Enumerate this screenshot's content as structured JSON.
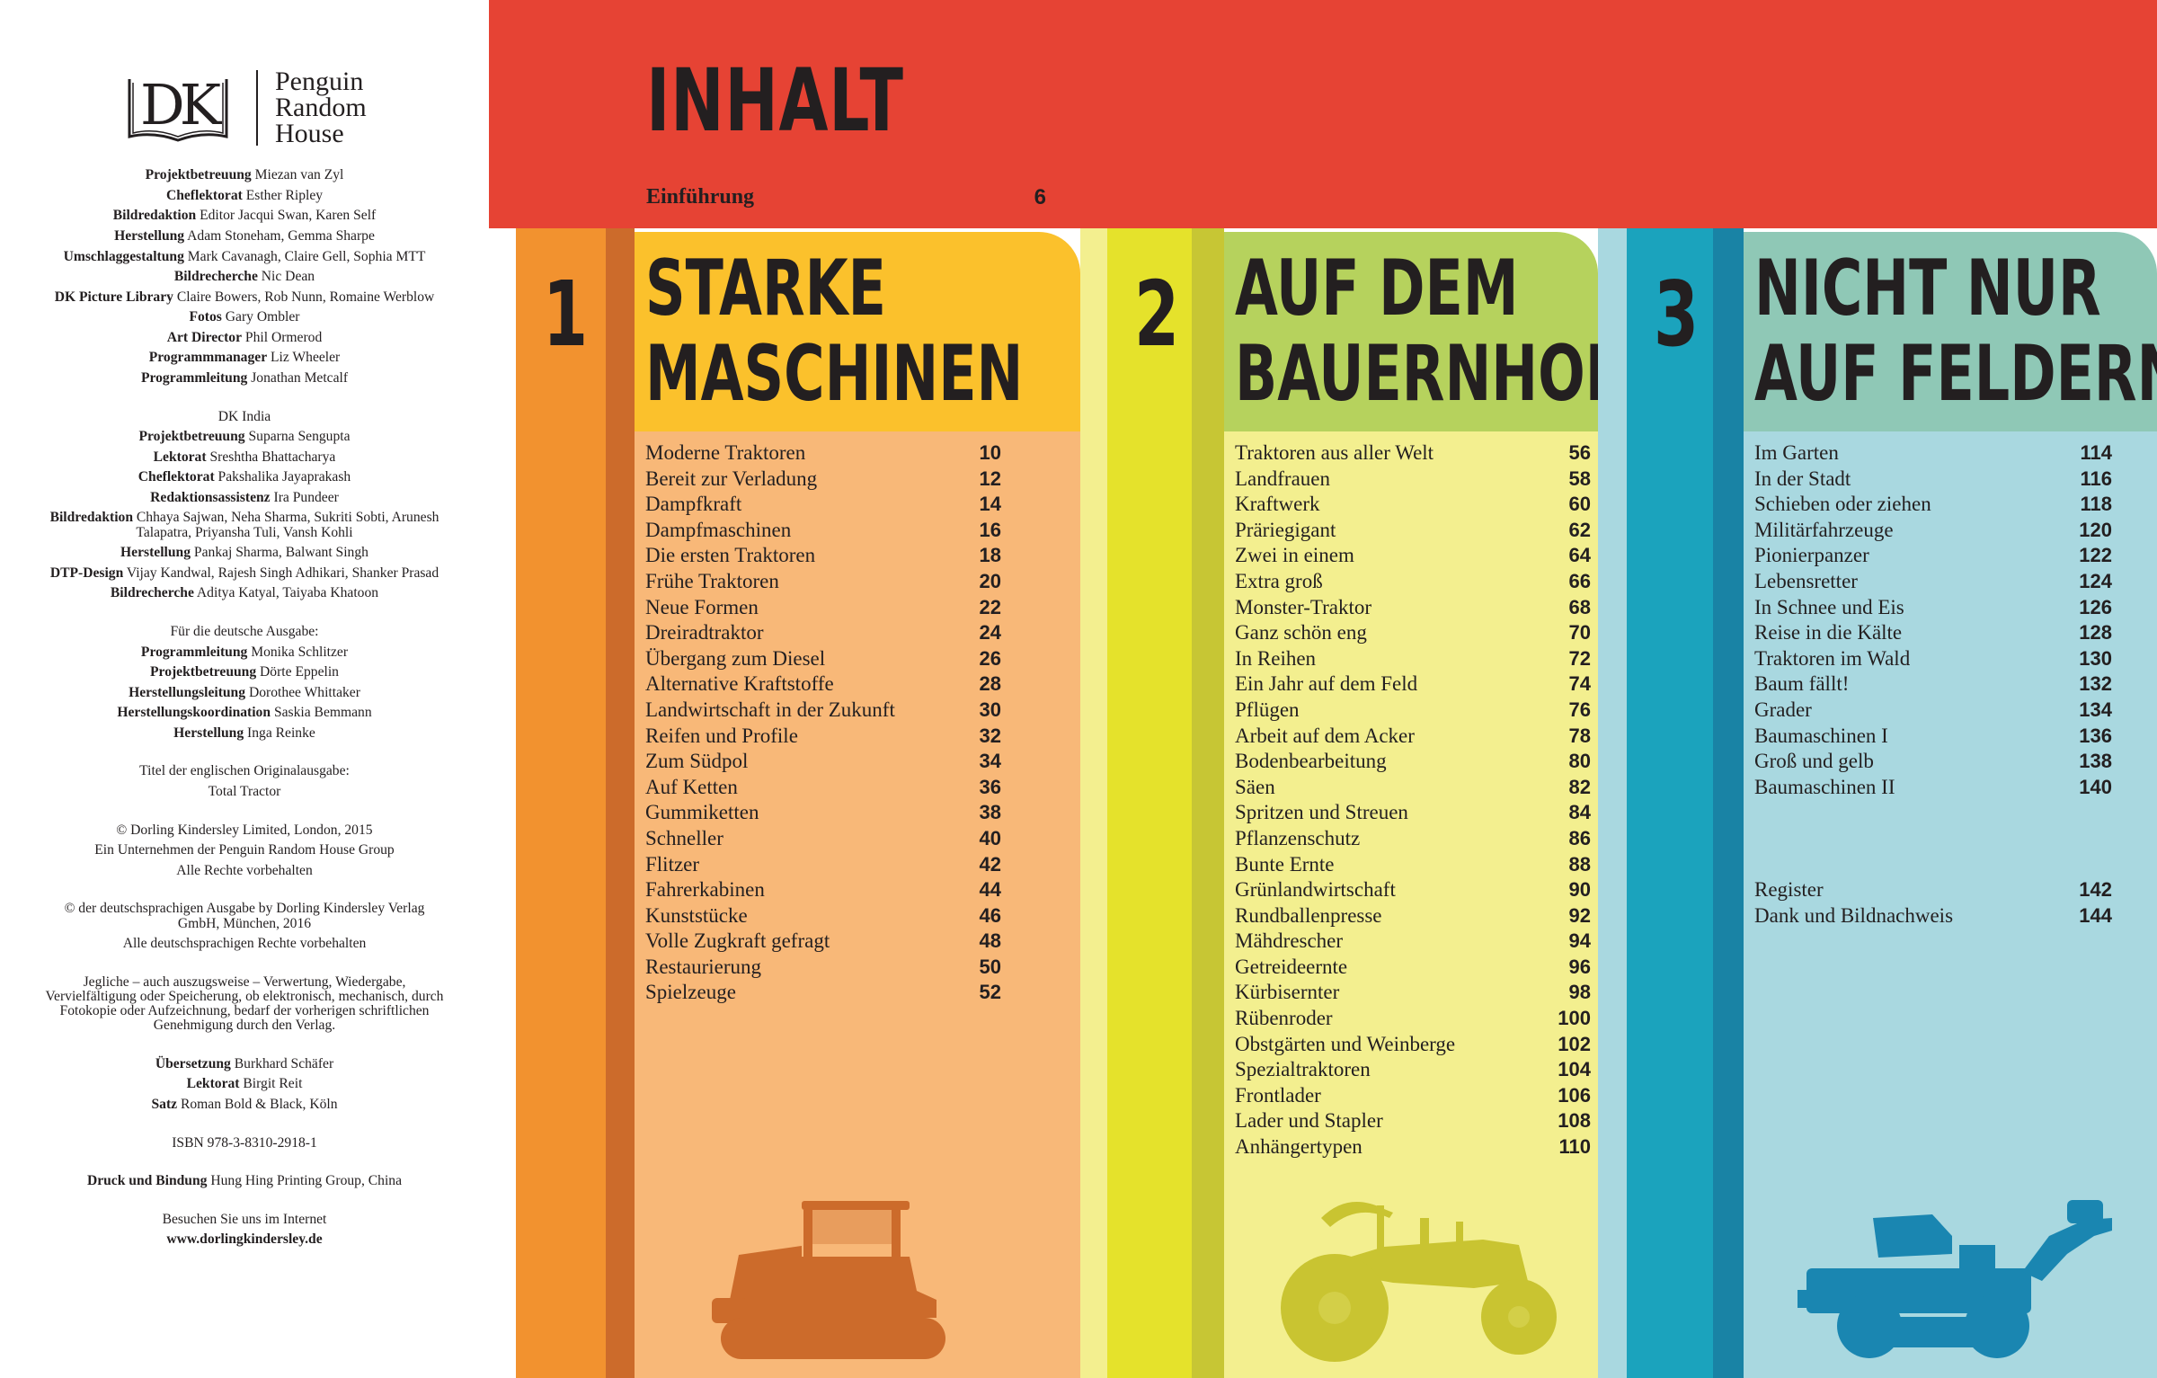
{
  "logo": {
    "dk": "DK",
    "publisher_lines": [
      "Penguin",
      "Random",
      "House"
    ]
  },
  "imprint": [
    [
      {
        "role": "Projektbetreuung",
        "name": "Miezan van Zyl"
      },
      {
        "role": "Cheflektorat",
        "name": "Esther Ripley"
      },
      {
        "role": "Bildredaktion",
        "name": "Editor Jacqui Swan, Karen Self"
      },
      {
        "role": "Herstellung",
        "name": "Adam Stoneham, Gemma Sharpe"
      },
      {
        "role": "Umschlaggestaltung",
        "name": "Mark Cavanagh, Claire Gell, Sophia MTT"
      },
      {
        "role": "Bildrecherche",
        "name": "Nic Dean"
      },
      {
        "role": "DK Picture Library",
        "name": "Claire Bowers, Rob Nunn, Romaine Werblow"
      },
      {
        "role": "Fotos",
        "name": "Gary Ombler"
      },
      {
        "role": "Art Director",
        "name": "Phil Ormerod"
      },
      {
        "role": "Programmmanager",
        "name": "Liz Wheeler"
      },
      {
        "role": "Programmleitung",
        "name": "Jonathan Metcalf"
      }
    ],
    [
      {
        "role": "",
        "name": "DK India"
      },
      {
        "role": "Projektbetreuung",
        "name": "Suparna Sengupta"
      },
      {
        "role": "Lektorat",
        "name": "Sreshtha Bhattacharya"
      },
      {
        "role": "Cheflektorat",
        "name": "Pakshalika Jayaprakash"
      },
      {
        "role": "Redaktionsassistenz",
        "name": "Ira Pundeer"
      },
      {
        "role": "Bildredaktion",
        "name": "Chhaya Sajwan, Neha Sharma, Sukriti Sobti, Arunesh Talapatra, Priyansha Tuli, Vansh Kohli"
      },
      {
        "role": "Herstellung",
        "name": "Pankaj Sharma, Balwant Singh"
      },
      {
        "role": "DTP-Design",
        "name": "Vijay Kandwal, Rajesh Singh Adhikari, Shanker Prasad"
      },
      {
        "role": "Bildrecherche",
        "name": "Aditya Katyal, Taiyaba Khatoon"
      }
    ],
    [
      {
        "role": "",
        "name": "Für die deutsche Ausgabe:"
      },
      {
        "role": "Programmleitung",
        "name": "Monika Schlitzer"
      },
      {
        "role": "Projektbetreuung",
        "name": "Dörte Eppelin"
      },
      {
        "role": "Herstellungsleitung",
        "name": "Dorothee Whittaker"
      },
      {
        "role": "Herstellungskoordination",
        "name": "Saskia Bemmann"
      },
      {
        "role": "Herstellung",
        "name": "Inga Reinke"
      }
    ],
    [
      {
        "role": "",
        "name": "Titel der englischen Originalausgabe:"
      },
      {
        "role": "",
        "name": "Total Tractor"
      }
    ],
    [
      {
        "role": "",
        "name": "© Dorling Kindersley Limited, London, 2015"
      },
      {
        "role": "",
        "name": "Ein Unternehmen der Penguin Random House Group"
      },
      {
        "role": "",
        "name": "Alle Rechte vorbehalten"
      }
    ],
    [
      {
        "role": "",
        "name": "© der deutschsprachigen Ausgabe by Dorling Kindersley Verlag GmbH, München, 2016"
      },
      {
        "role": "",
        "name": "Alle deutschsprachigen Rechte vorbehalten"
      }
    ],
    [
      {
        "role": "",
        "name": "Jegliche – auch auszugsweise – Verwertung, Wiedergabe, Vervielfältigung oder Speicherung, ob elektronisch, mechanisch, durch Fotokopie oder Aufzeichnung, bedarf der vorherigen schriftlichen Genehmigung durch den Verlag."
      }
    ],
    [
      {
        "role": "Übersetzung",
        "name": "Burkhard Schäfer"
      },
      {
        "role": "Lektorat",
        "name": "Birgit Reit"
      },
      {
        "role": "Satz",
        "name": "Roman Bold & Black, Köln"
      }
    ],
    [
      {
        "role": "",
        "name": "ISBN 978-3-8310-2918-1"
      }
    ],
    [
      {
        "role": "Druck und Bindung",
        "name": "Hung Hing Printing Group, China"
      }
    ],
    [
      {
        "role": "",
        "name": "Besuchen Sie uns im Internet"
      },
      {
        "role": "www.dorlingkindersley.de",
        "name": ""
      }
    ]
  ],
  "toc": {
    "title": "INHALT",
    "intro": {
      "label": "Einführung",
      "page": "6"
    },
    "sections": [
      {
        "number": "1",
        "title_line1": "STARKE",
        "title_line2": "MASCHINEN",
        "colors": {
          "band": "#f2922f",
          "stripe": "#cc6b2b",
          "head": "#fbc12c",
          "body": "#f8b878",
          "tractor": "#cc6b2b"
        },
        "entries": [
          {
            "t": "Moderne Traktoren",
            "p": "10"
          },
          {
            "t": "Bereit zur Verladung",
            "p": "12"
          },
          {
            "t": "Dampfkraft",
            "p": "14"
          },
          {
            "t": "Dampfmaschinen",
            "p": "16"
          },
          {
            "t": "Die ersten Traktoren",
            "p": "18"
          },
          {
            "t": "Frühe Traktoren",
            "p": "20"
          },
          {
            "t": "Neue Formen",
            "p": "22"
          },
          {
            "t": "Dreiradtraktor",
            "p": "24"
          },
          {
            "t": "Übergang zum Diesel",
            "p": "26"
          },
          {
            "t": "Alternative Kraftstoffe",
            "p": "28"
          },
          {
            "t": "Landwirtschaft in der Zukunft",
            "p": "30"
          },
          {
            "t": "Reifen und Profile",
            "p": "32"
          },
          {
            "t": "Zum Südpol",
            "p": "34"
          },
          {
            "t": "Auf Ketten",
            "p": "36"
          },
          {
            "t": "Gummiketten",
            "p": "38"
          },
          {
            "t": "Schneller",
            "p": "40"
          },
          {
            "t": "Flitzer",
            "p": "42"
          },
          {
            "t": "Fahrerkabinen",
            "p": "44"
          },
          {
            "t": "Kunststücke",
            "p": "46"
          },
          {
            "t": "Volle Zugkraft gefragt",
            "p": "48"
          },
          {
            "t": "Restaurierung",
            "p": "50"
          },
          {
            "t": "Spielzeuge",
            "p": "52"
          }
        ]
      },
      {
        "number": "2",
        "title_line1": "AUF DEM",
        "title_line2": "BAUERNHOF",
        "colors": {
          "band": "#e5e22b",
          "stripe": "#c7c634",
          "head": "#b6d25d",
          "body": "#f3ef8f",
          "tractor": "#c9c431"
        },
        "entries": [
          {
            "t": "Traktoren aus aller Welt",
            "p": "56"
          },
          {
            "t": "Landfrauen",
            "p": "58"
          },
          {
            "t": "Kraftwerk",
            "p": "60"
          },
          {
            "t": "Präriegigant",
            "p": "62"
          },
          {
            "t": "Zwei in einem",
            "p": "64"
          },
          {
            "t": "Extra groß",
            "p": "66"
          },
          {
            "t": "Monster-Traktor",
            "p": "68"
          },
          {
            "t": "Ganz schön eng",
            "p": "70"
          },
          {
            "t": "In Reihen",
            "p": "72"
          },
          {
            "t": "Ein Jahr auf dem Feld",
            "p": "74"
          },
          {
            "t": "Pflügen",
            "p": "76"
          },
          {
            "t": "Arbeit auf dem Acker",
            "p": "78"
          },
          {
            "t": "Bodenbearbeitung",
            "p": "80"
          },
          {
            "t": "Säen",
            "p": "82"
          },
          {
            "t": "Spritzen und Streuen",
            "p": "84"
          },
          {
            "t": "Pflanzenschutz",
            "p": "86"
          },
          {
            "t": "Bunte Ernte",
            "p": "88"
          },
          {
            "t": "Grünlandwirtschaft",
            "p": "90"
          },
          {
            "t": "Rundballenpresse",
            "p": "92"
          },
          {
            "t": "Mähdrescher",
            "p": "94"
          },
          {
            "t": "Getreideernte",
            "p": "96"
          },
          {
            "t": "Kürbisernter",
            "p": "98"
          },
          {
            "t": "Rübenroder",
            "p": "100"
          },
          {
            "t": "Obstgärten und Weinberge",
            "p": "102"
          },
          {
            "t": "Spezialtraktoren",
            "p": "104"
          },
          {
            "t": "Frontlader",
            "p": "106"
          },
          {
            "t": "Lader und Stapler",
            "p": "108"
          },
          {
            "t": "Anhängertypen",
            "p": "110"
          }
        ]
      },
      {
        "number": "3",
        "title_line1": "NICHT NUR",
        "title_line2": "AUF FELDERN",
        "colors": {
          "band": "#1ba3bd",
          "stripe": "#1983a5",
          "head": "#8fc8b6",
          "body": "#a9d8e0",
          "tractor": "#1a86b1"
        },
        "entries": [
          {
            "t": "Im Garten",
            "p": "114"
          },
          {
            "t": "In der Stadt",
            "p": "116"
          },
          {
            "t": "Schieben oder ziehen",
            "p": "118"
          },
          {
            "t": "Militärfahrzeuge",
            "p": "120"
          },
          {
            "t": "Pionierpanzer",
            "p": "122"
          },
          {
            "t": "Lebensretter",
            "p": "124"
          },
          {
            "t": "In Schnee und Eis",
            "p": "126"
          },
          {
            "t": "Reise in die Kälte",
            "p": "128"
          },
          {
            "t": "Traktoren im Wald",
            "p": "130"
          },
          {
            "t": "Baum fällt!",
            "p": "132"
          },
          {
            "t": "Grader",
            "p": "134"
          },
          {
            "t": "Baumaschinen I",
            "p": "136"
          },
          {
            "t": "Groß und gelb",
            "p": "138"
          },
          {
            "t": "Baumaschinen II",
            "p": "140"
          },
          {
            "t": "Register",
            "p": "142",
            "gap": true
          },
          {
            "t": "Dank und Bildnachweis",
            "p": "144"
          }
        ]
      }
    ]
  }
}
